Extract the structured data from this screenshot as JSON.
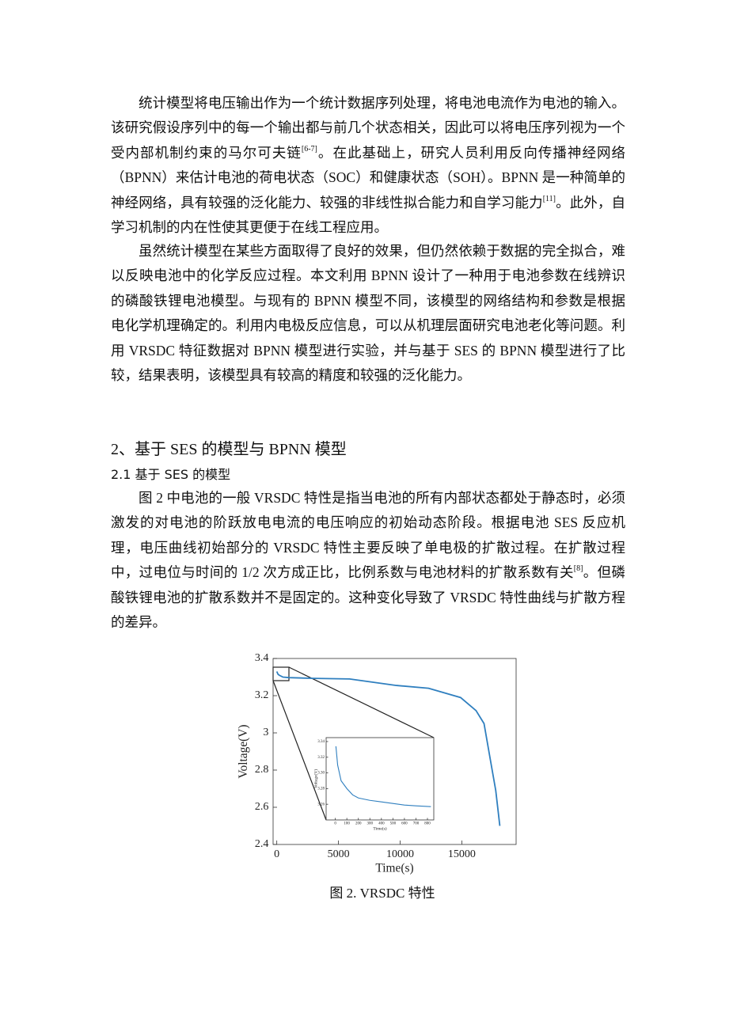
{
  "paragraphs": [
    [
      "统计模型将电压输出作为一个统计数据序列处理，将电池电流作为电池的输入。该研究假设序列中的每一个输出都与前几个状态相关，因此可以将电压序列视为一个受内部机制约束的马尔可夫链",
      "[6-7]",
      "。在此基础上，研究人员利用反向传播神经网络（BPNN）来估计电池的荷电状态（SOC）和健康状态（SOH）。BPNN 是一种简单的神经网络，具有较强的泛化能力、较强的非线性拟合能力和自学习能力",
      "[11]",
      "。此外，自学习机制的内在性使其更便于在线工程应用。"
    ],
    [
      "虽然统计模型在某些方面取得了良好的效果，但仍然依赖于数据的完全拟合，难以反映电池中的化学反应过程。本文利用 BPNN 设计了一种用于电池参数在线辨识的磷酸铁锂电池模型。与现有的 BPNN 模型不同，该模型的网络结构和参数是根据电化学机理确定的。利用内电极反应信息，可以从机理层面研究电池老化等问题。利用 VRSDC 特征数据对 BPNN 模型进行实验，并与基于 SES 的 BPNN 模型进行了比较，结果表明，该模型具有较高的精度和较强的泛化能力。"
    ],
    [
      "图 2 中电池的一般 VRSDC 特性是指当电池的所有内部状态都处于静态时，必须激发的对电池的阶跃放电电流的电压响应的初始动态阶段。根据电池 SES 反应机理，电压曲线初始部分的 VRSDC 特性主要反映了单电极的扩散过程。在扩散过程中，过电位与时间的 1/2 次方成正比，比例系数与电池材料的扩散系数有关",
      "[8]",
      "。但磷酸铁锂电池的扩散系数并不是固定的。这种变化导致了 VRSDC 特性曲线与扩散方程的差异。"
    ]
  ],
  "section_heading": "2、基于 SES 的模型与 BPNN 模型",
  "subsection_heading": "2.1  基于 SES 的模型",
  "figure_caption": "图 2. VRSDC 特性",
  "chart_data": [
    {
      "type": "line",
      "x_label": "Time(s)",
      "y_label": "Voltage(V)",
      "x": [
        0,
        100,
        200,
        500,
        1000,
        3000,
        5900,
        9700,
        12300,
        14900,
        16150,
        16800,
        17300,
        17750,
        18080
      ],
      "values": [
        3.33,
        3.315,
        3.31,
        3.3,
        3.297,
        3.293,
        3.29,
        3.255,
        3.24,
        3.19,
        3.12,
        3.05,
        2.86,
        2.69,
        2.5
      ],
      "color": "#2f7fbf",
      "xlim": [
        -300,
        19400
      ],
      "xticks": [
        0,
        5000,
        10000,
        15000
      ],
      "ylim": [
        2.4,
        3.4
      ],
      "yticks": [
        2.4,
        2.6,
        2.8,
        3,
        3.2,
        3.4
      ]
    },
    {
      "type": "line",
      "x_label": "Time(s)",
      "y_label": "Voltage(V)",
      "x": [
        5,
        20,
        50,
        100,
        150,
        200,
        300,
        400,
        500,
        600,
        700,
        830
      ],
      "values": [
        3.334,
        3.31,
        3.29,
        3.28,
        3.272,
        3.268,
        3.265,
        3.263,
        3.261,
        3.259,
        3.258,
        3.257
      ],
      "color": "#2f7fbf",
      "xlim": [
        -80,
        855
      ],
      "xticks": [
        0,
        100,
        200,
        300,
        400,
        500,
        600,
        700,
        800
      ],
      "ylim": [
        3.24,
        3.345
      ],
      "yticks": [
        3.26,
        3.28,
        {
          "value": 3.3,
          "label": "3.30"
        },
        3.32,
        3.34
      ]
    }
  ]
}
